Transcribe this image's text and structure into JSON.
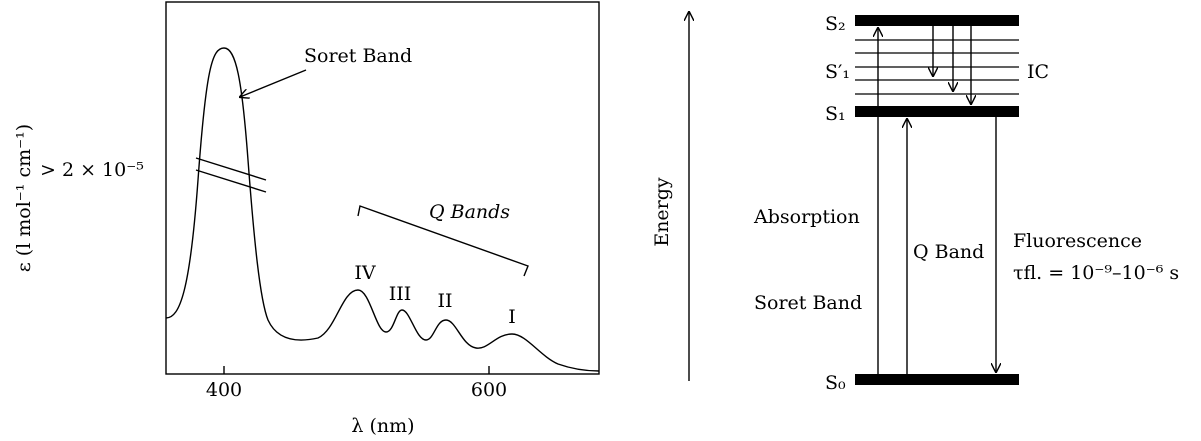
{
  "spectrum": {
    "y_axis_label": "ε (l mol⁻¹ cm⁻¹)",
    "x_axis_label": "λ (nm)",
    "x_ticks": [
      "400",
      "600"
    ],
    "break_value_label": "> 2 × 10⁻⁵",
    "soret_label": "Soret Band",
    "q_bands_label": "Q Bands",
    "peaks": [
      "IV",
      "III",
      "II",
      "I"
    ]
  },
  "energy_diagram": {
    "axis_label": "Energy",
    "levels": {
      "s2": "S₂",
      "s1_prime": "S′₁",
      "s1": "S₁",
      "s0": "S₀"
    },
    "ic_label": "IC",
    "absorption_label": "Absorption",
    "soret_band_label": "Soret Band",
    "q_band_label": "Q Band",
    "fluorescence_label": "Fluorescence",
    "lifetime_label": "τfl. = 10⁻⁹–10⁻⁶ s"
  },
  "colors": {
    "ink": "#000000",
    "background": "#ffffff"
  }
}
